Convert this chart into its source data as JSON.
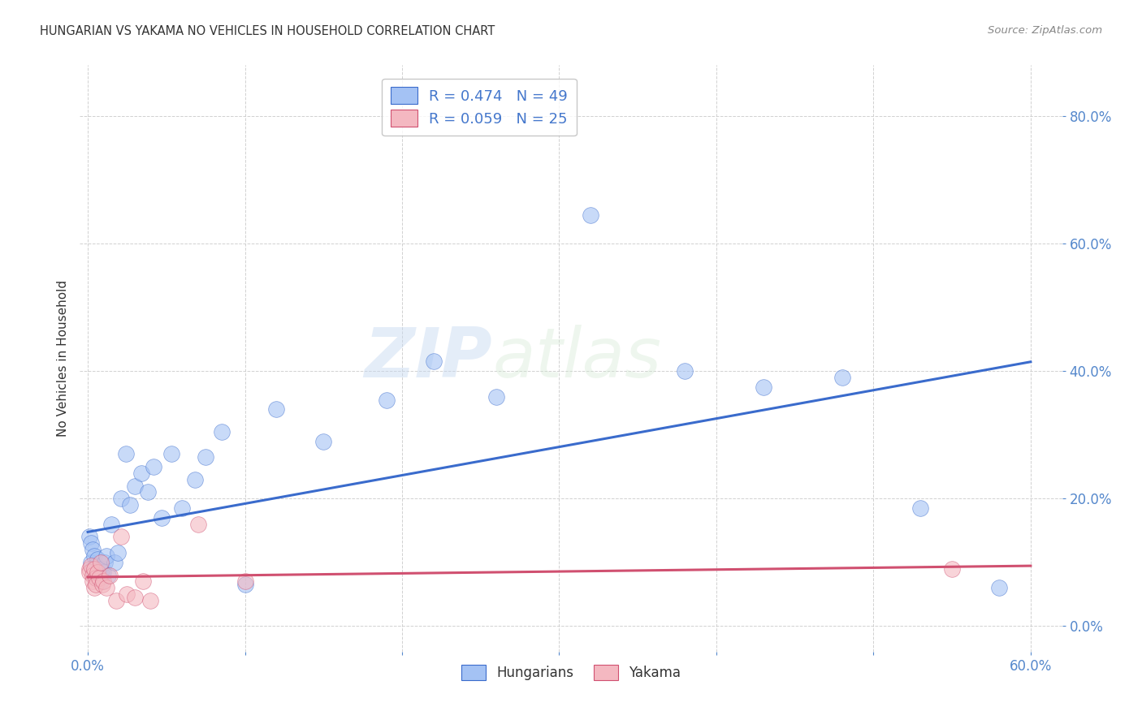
{
  "title": "HUNGARIAN VS YAKAMA NO VEHICLES IN HOUSEHOLD CORRELATION CHART",
  "source": "Source: ZipAtlas.com",
  "ylabel": "No Vehicles in Household",
  "xlim": [
    -0.005,
    0.62
  ],
  "ylim": [
    -0.04,
    0.88
  ],
  "yticks": [
    0.0,
    0.2,
    0.4,
    0.6,
    0.8
  ],
  "ytick_labels": [
    "0.0%",
    "20.0%",
    "40.0%",
    "60.0%",
    "80.0%"
  ],
  "xticks": [
    0.0,
    0.1,
    0.2,
    0.3,
    0.4,
    0.5,
    0.6
  ],
  "xtick_labels": [
    "0.0%",
    "",
    "",
    "",
    "",
    "",
    "60.0%"
  ],
  "blue_R": 0.474,
  "blue_N": 49,
  "pink_R": 0.059,
  "pink_N": 25,
  "blue_color": "#a4c2f4",
  "pink_color": "#f4b8c1",
  "line_blue": "#3a6bcc",
  "line_pink": "#d05070",
  "watermark_zip": "ZIP",
  "watermark_atlas": "atlas",
  "blue_x": [
    0.001,
    0.002,
    0.002,
    0.003,
    0.003,
    0.004,
    0.004,
    0.005,
    0.005,
    0.006,
    0.006,
    0.007,
    0.007,
    0.008,
    0.008,
    0.009,
    0.009,
    0.01,
    0.011,
    0.012,
    0.013,
    0.015,
    0.017,
    0.019,
    0.021,
    0.024,
    0.027,
    0.03,
    0.034,
    0.038,
    0.042,
    0.047,
    0.053,
    0.06,
    0.068,
    0.075,
    0.085,
    0.1,
    0.12,
    0.15,
    0.19,
    0.22,
    0.26,
    0.32,
    0.38,
    0.43,
    0.48,
    0.53,
    0.58
  ],
  "blue_y": [
    0.14,
    0.1,
    0.13,
    0.09,
    0.12,
    0.08,
    0.11,
    0.085,
    0.095,
    0.075,
    0.105,
    0.08,
    0.09,
    0.07,
    0.085,
    0.08,
    0.09,
    0.085,
    0.1,
    0.11,
    0.08,
    0.16,
    0.1,
    0.115,
    0.2,
    0.27,
    0.19,
    0.22,
    0.24,
    0.21,
    0.25,
    0.17,
    0.27,
    0.185,
    0.23,
    0.265,
    0.305,
    0.065,
    0.34,
    0.29,
    0.355,
    0.415,
    0.36,
    0.645,
    0.4,
    0.375,
    0.39,
    0.185,
    0.06
  ],
  "pink_x": [
    0.001,
    0.001,
    0.002,
    0.003,
    0.003,
    0.004,
    0.004,
    0.005,
    0.005,
    0.006,
    0.007,
    0.008,
    0.009,
    0.01,
    0.012,
    0.014,
    0.018,
    0.021,
    0.025,
    0.03,
    0.035,
    0.04,
    0.07,
    0.1,
    0.55
  ],
  "pink_y": [
    0.09,
    0.085,
    0.095,
    0.08,
    0.07,
    0.09,
    0.06,
    0.075,
    0.065,
    0.085,
    0.075,
    0.1,
    0.065,
    0.07,
    0.06,
    0.08,
    0.04,
    0.14,
    0.05,
    0.045,
    0.07,
    0.04,
    0.16,
    0.07,
    0.09
  ]
}
